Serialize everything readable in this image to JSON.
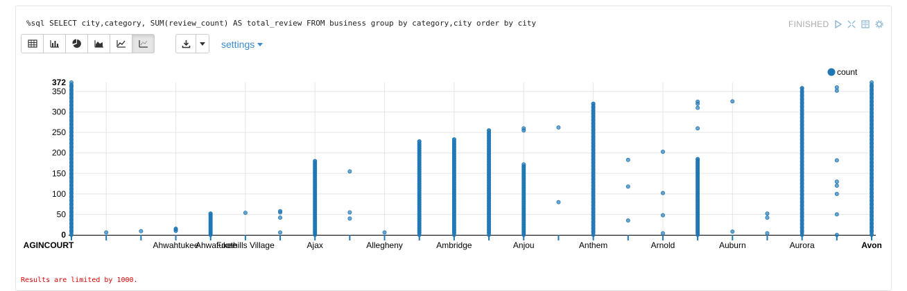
{
  "paragraph": {
    "query": "%sql SELECT city,category, SUM(review_count) AS total_review FROM business group by category,city order by city",
    "status": "FINISHED",
    "controls": [
      "run-icon",
      "expand-icon",
      "book-icon",
      "gear-icon"
    ],
    "toolbar": [
      "table-icon",
      "bar-chart-icon",
      "pie-chart-icon",
      "area-chart-icon",
      "line-chart-icon",
      "scatter-chart-icon"
    ],
    "download_icon": "download-icon",
    "settings_label": "settings",
    "limit_message": "Results are limited by 1000."
  },
  "colors": {
    "series": "#1f77b4",
    "grid": "#e5e5e5",
    "accent": "#3a8ccc",
    "error": "#dd0000"
  },
  "chart_data": {
    "type": "scatter",
    "ylim": [
      0,
      372
    ],
    "y_ticks": [
      0,
      50,
      100,
      150,
      200,
      250,
      300,
      350,
      372
    ],
    "grid": true,
    "legend_position": "top-right",
    "series": [
      {
        "name": "count"
      }
    ],
    "x_labels": [
      "AGINCOURT",
      "Ahwahtukee",
      "Ahwatukee",
      "Foothills Village",
      "Ajax",
      "Allegheny",
      "Ambridge",
      "Anjou",
      "Anthem",
      "Arnold",
      "Auburn",
      "Aurora",
      "Avon"
    ],
    "x_bold_labels": [
      "AGINCOURT",
      "Avon"
    ],
    "columns": [
      {
        "label": "AGINCOURT",
        "values": [
          0,
          372
        ],
        "dense": true
      },
      {
        "label": "",
        "values": [
          6
        ]
      },
      {
        "label": "",
        "values": [
          9
        ]
      },
      {
        "label": "Ahwahtukee",
        "values": [
          10,
          13,
          15
        ]
      },
      {
        "label": "Ahwatukee",
        "values": [
          0,
          52
        ],
        "dense": true
      },
      {
        "label": "Foothills Village",
        "values": [
          54
        ]
      },
      {
        "label": "",
        "values": [
          6,
          42,
          55,
          58
        ]
      },
      {
        "label": "Ajax",
        "values": [
          0,
          180
        ],
        "dense": true
      },
      {
        "label": "",
        "values": [
          40,
          55,
          155
        ]
      },
      {
        "label": "Allegheny",
        "values": [
          6
        ]
      },
      {
        "label": "",
        "values": [
          0,
          228
        ],
        "dense": true
      },
      {
        "label": "Ambridge",
        "values": [
          0,
          233
        ],
        "dense": true
      },
      {
        "label": "",
        "values": [
          0,
          255
        ],
        "dense": true
      },
      {
        "label": "Anjou",
        "values": [
          0,
          172
        ],
        "dense": true,
        "extra": [
          255,
          260
        ]
      },
      {
        "label": "",
        "values": [
          80,
          262
        ]
      },
      {
        "label": "Anthem",
        "values": [
          0,
          320
        ],
        "dense": true
      },
      {
        "label": "",
        "values": [
          35,
          118,
          183
        ]
      },
      {
        "label": "Arnold",
        "values": [
          4,
          48,
          102,
          203
        ]
      },
      {
        "label": "",
        "values": [
          0,
          185
        ],
        "dense": true,
        "extra": [
          260,
          310,
          320,
          325
        ]
      },
      {
        "label": "Auburn",
        "values": [
          8,
          326
        ]
      },
      {
        "label": "",
        "values": [
          4,
          42,
          52
        ]
      },
      {
        "label": "Aurora",
        "values": [
          0,
          358
        ],
        "dense": true
      },
      {
        "label": "",
        "values": [
          0,
          50,
          100,
          120,
          130,
          182,
          352,
          360
        ]
      },
      {
        "label": "Avon",
        "values": [
          0,
          372
        ],
        "dense": true
      }
    ]
  }
}
